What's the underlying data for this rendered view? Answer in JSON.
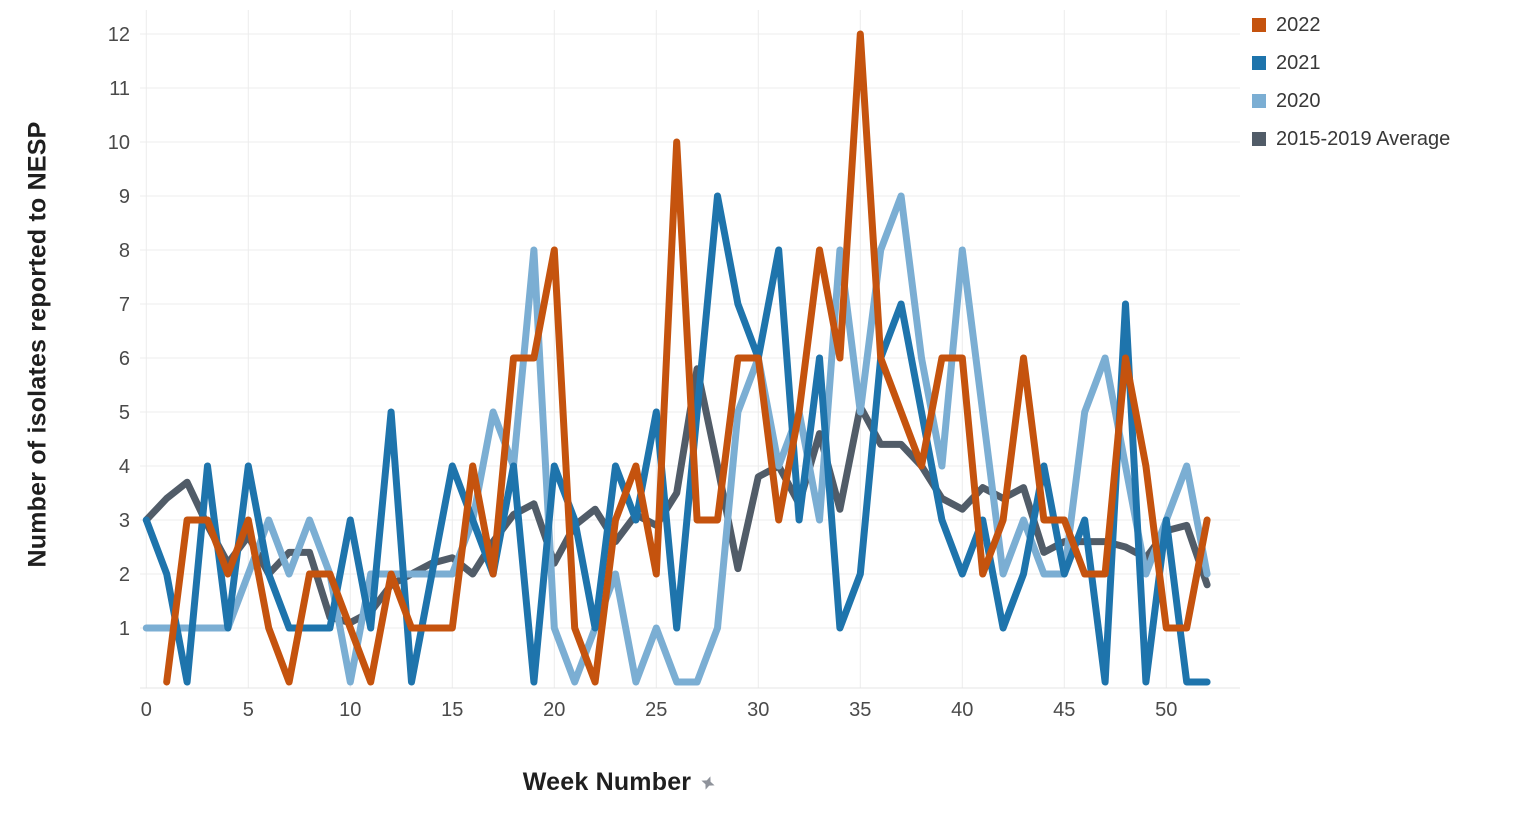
{
  "chart_data": {
    "type": "line",
    "title": "",
    "xlabel": "Week Number",
    "ylabel": "Number of isolates reported to NESP",
    "xlim": [
      0,
      52
    ],
    "ylim": [
      0,
      12.3
    ],
    "x_ticks": [
      0,
      5,
      10,
      15,
      20,
      25,
      30,
      35,
      40,
      45,
      50
    ],
    "y_ticks": [
      1,
      2,
      3,
      4,
      5,
      6,
      7,
      8,
      9,
      10,
      11,
      12
    ],
    "grid": true,
    "legend_position": "top-right",
    "x": [
      0,
      1,
      2,
      3,
      4,
      5,
      6,
      7,
      8,
      9,
      10,
      11,
      12,
      13,
      14,
      15,
      16,
      17,
      18,
      19,
      20,
      21,
      22,
      23,
      24,
      25,
      26,
      27,
      28,
      29,
      30,
      31,
      32,
      33,
      34,
      35,
      36,
      37,
      38,
      39,
      40,
      41,
      42,
      43,
      44,
      45,
      46,
      47,
      48,
      49,
      50,
      51,
      52
    ],
    "series": [
      {
        "name": "2022",
        "color": "#C5530E",
        "values": [
          null,
          0,
          3,
          3,
          2,
          3,
          1,
          0,
          2,
          2,
          1,
          0,
          2,
          1,
          1,
          1,
          4,
          2,
          6,
          6,
          8,
          1,
          0,
          3,
          4,
          2,
          10,
          3,
          3,
          6,
          6,
          3,
          5,
          8,
          6,
          12,
          6,
          5,
          4,
          6,
          6,
          2,
          3,
          6,
          3,
          3,
          2,
          2,
          6,
          4,
          1,
          1,
          3
        ]
      },
      {
        "name": "2021",
        "color": "#1E74AC",
        "values": [
          3,
          2,
          0,
          4,
          1,
          4,
          2,
          1,
          1,
          1,
          3,
          1,
          5,
          0,
          2,
          4,
          3,
          2,
          4,
          0,
          4,
          3,
          1,
          4,
          3,
          5,
          1,
          5,
          9,
          7,
          6,
          8,
          3,
          6,
          1,
          2,
          6,
          7,
          5,
          3,
          2,
          3,
          1,
          2,
          4,
          2,
          3,
          0,
          7,
          0,
          3,
          0,
          0
        ]
      },
      {
        "name": "2020",
        "color": "#7BAED3",
        "values": [
          1,
          1,
          1,
          1,
          1,
          2,
          3,
          2,
          3,
          2,
          0,
          2,
          2,
          2,
          2,
          2,
          3,
          5,
          4,
          8,
          1,
          0,
          1,
          2,
          0,
          1,
          0,
          0,
          1,
          5,
          6,
          4,
          5,
          3,
          8,
          5,
          8,
          9,
          6,
          4,
          8,
          5,
          2,
          3,
          2,
          2,
          5,
          6,
          4,
          2,
          3,
          4,
          2
        ]
      },
      {
        "name": "2015-2019 Average",
        "color": "#515C68",
        "values": [
          3.0,
          3.4,
          3.7,
          2.9,
          2.2,
          2.7,
          2.0,
          2.4,
          2.4,
          1.2,
          1.1,
          1.3,
          1.8,
          2.0,
          2.2,
          2.3,
          2.0,
          2.6,
          3.1,
          3.3,
          2.2,
          2.9,
          3.2,
          2.6,
          3.1,
          2.9,
          3.5,
          5.8,
          4.0,
          2.1,
          3.8,
          4.0,
          3.3,
          4.6,
          3.2,
          5.1,
          4.4,
          4.4,
          4.0,
          3.4,
          3.2,
          3.6,
          3.4,
          3.6,
          2.4,
          2.6,
          2.6,
          2.6,
          2.5,
          2.3,
          2.8,
          2.9,
          1.8
        ]
      }
    ]
  },
  "axes": {
    "x_title": "Week Number",
    "y_title": "Number of isolates reported to NESP"
  },
  "legend": {
    "items": [
      {
        "label": "2022",
        "color": "#C5530E"
      },
      {
        "label": "2021",
        "color": "#1E74AC"
      },
      {
        "label": "2020",
        "color": "#7BAED3"
      },
      {
        "label": "2015-2019 Average",
        "color": "#515C68"
      }
    ]
  },
  "icons": {
    "pin": "pin-icon"
  },
  "style": {
    "grid_color": "#ececec",
    "axis_line_color": "#e4e4e4",
    "tick_color": "#4a4a4a",
    "pin_color": "#8f939b"
  }
}
